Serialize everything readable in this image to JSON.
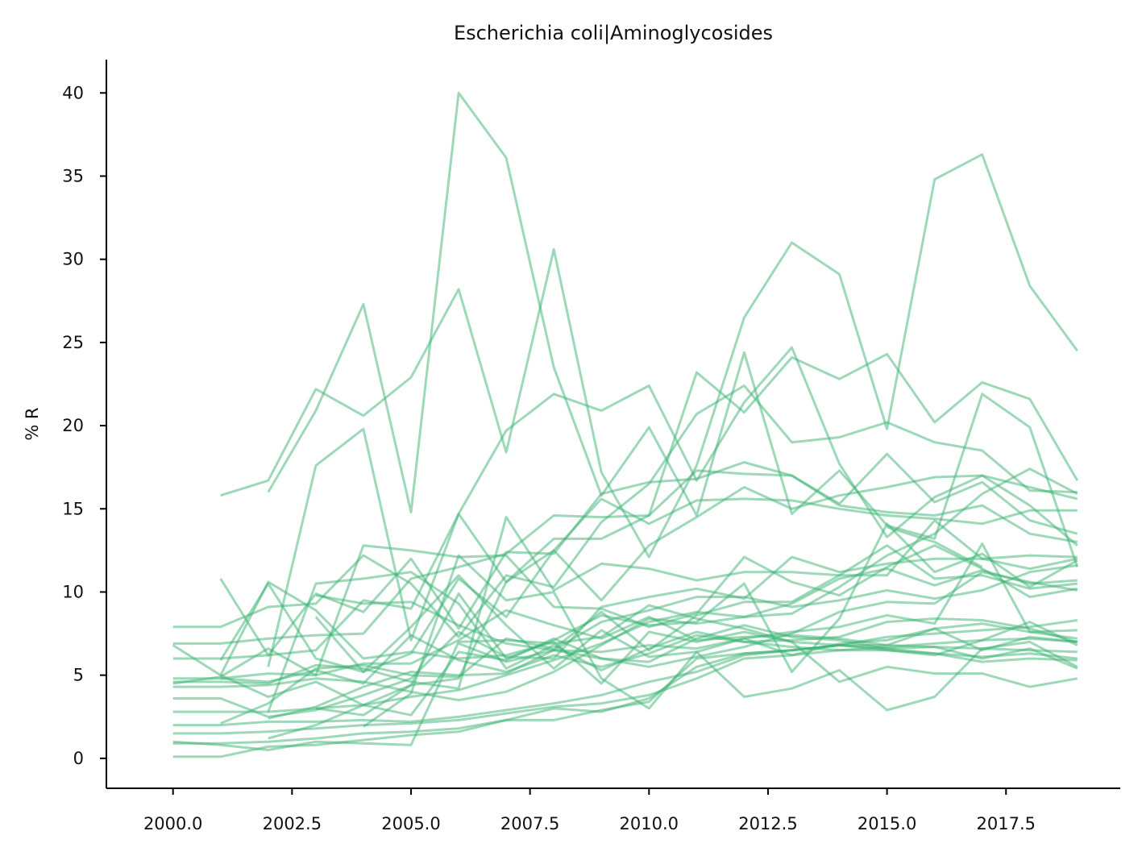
{
  "chart_data": {
    "type": "line",
    "title": "Escherichia coli|Aminoglycosides",
    "xlabel": "",
    "ylabel": "% R",
    "xlim": [
      1998.6,
      2019.9
    ],
    "ylim": [
      -1.8,
      42
    ],
    "xticks": [
      2000.0,
      2002.5,
      2005.0,
      2007.5,
      2010.0,
      2012.5,
      2015.0,
      2017.5
    ],
    "xtick_labels": [
      "2000.0",
      "2002.5",
      "2005.0",
      "2007.5",
      "2010.0",
      "2012.5",
      "2015.0",
      "2017.5"
    ],
    "yticks": [
      0,
      5,
      10,
      15,
      20,
      25,
      30,
      35,
      40
    ],
    "ytick_labels": [
      "0",
      "5",
      "10",
      "15",
      "20",
      "25",
      "30",
      "35",
      "40"
    ],
    "grid": false,
    "legend": "none",
    "line_color": "#3cb371",
    "line_alpha": 0.5,
    "x": [
      2000,
      2001,
      2002,
      2003,
      2004,
      2005,
      2006,
      2007,
      2008,
      2009,
      2010,
      2011,
      2012,
      2013,
      2014,
      2015,
      2016,
      2017,
      2018,
      2019
    ],
    "series": [
      {
        "values": [
          null,
          15.8,
          16.7,
          22.2,
          20.6,
          22.9,
          28.2,
          18.4,
          30.6,
          17.2,
          12.1,
          17.6,
          26.5,
          31.0,
          29.1,
          19.8,
          34.8,
          36.3,
          28.4,
          24.5
        ]
      },
      {
        "values": [
          null,
          null,
          16.0,
          20.9,
          27.3,
          14.8,
          40.0,
          36.1,
          23.5,
          15.8,
          19.9,
          14.6,
          24.4,
          14.7,
          17.3,
          14.0,
          13.2,
          21.9,
          19.9,
          11.5
        ]
      },
      {
        "values": [
          null,
          null,
          5.5,
          17.6,
          19.8,
          7.1,
          14.7,
          19.7,
          21.9,
          20.9,
          22.4,
          16.7,
          21.4,
          24.7,
          17.7,
          13.3,
          15.7,
          17.0,
          15.2,
          12.8
        ]
      },
      {
        "values": [
          null,
          10.8,
          6.2,
          9.9,
          8.8,
          12.0,
          7.8,
          12.4,
          12.3,
          15.9,
          16.6,
          16.8,
          17.8,
          17.0,
          15.2,
          14.8,
          14.6,
          15.2,
          13.5,
          13.0
        ]
      },
      {
        "values": [
          7.9,
          7.9,
          9.1,
          9.3,
          12.2,
          10.5,
          7.3,
          11.0,
          10.3,
          14.2,
          16.5,
          20.7,
          22.4,
          19.0,
          19.3,
          20.2,
          19.0,
          18.5,
          16.1,
          16.0
        ]
      },
      {
        "values": [
          6.9,
          6.9,
          7.2,
          7.4,
          7.5,
          10.8,
          11.5,
          12.3,
          14.6,
          14.5,
          14.6,
          23.2,
          20.8,
          24.1,
          22.8,
          24.3,
          20.2,
          22.6,
          21.6,
          16.7
        ]
      },
      {
        "values": [
          6.0,
          6.0,
          6.2,
          6.5,
          9.5,
          9.0,
          14.7,
          10.6,
          12.5,
          15.6,
          14.1,
          15.5,
          15.6,
          15.5,
          15.0,
          14.6,
          14.4,
          14.1,
          14.9,
          14.9
        ]
      },
      {
        "values": [
          4.8,
          4.8,
          5.1,
          5.0,
          12.8,
          12.5,
          12.1,
          12.2,
          9.1,
          9.0,
          7.9,
          8.7,
          12.1,
          10.6,
          9.8,
          11.5,
          12.8,
          11.4,
          9.7,
          10.2
        ]
      },
      {
        "values": [
          4.6,
          4.6,
          4.5,
          5.6,
          5.4,
          4.6,
          4.2,
          14.5,
          10.1,
          11.7,
          11.4,
          10.7,
          11.2,
          11.2,
          11.0,
          12.8,
          10.8,
          11.0,
          10.2,
          10.5
        ]
      },
      {
        "values": [
          4.3,
          4.3,
          4.4,
          4.8,
          4.6,
          4.0,
          3.5,
          4.0,
          5.2,
          6.8,
          8.4,
          8.1,
          8.5,
          8.7,
          10.3,
          12.2,
          13.5,
          15.9,
          17.4,
          15.9
        ]
      },
      {
        "values": [
          3.6,
          3.6,
          2.5,
          2.9,
          3.8,
          4.8,
          7.6,
          6.1,
          6.0,
          9.1,
          9.7,
          10.2,
          9.6,
          12.1,
          11.2,
          11.7,
          12.0,
          12.0,
          12.2,
          12.1
        ]
      },
      {
        "values": [
          2.8,
          2.8,
          2.8,
          3.0,
          3.2,
          3.7,
          4.1,
          5.0,
          5.9,
          6.9,
          8.2,
          8.8,
          8.5,
          9.3,
          10.8,
          11.4,
          10.4,
          11.3,
          10.5,
          10.7
        ]
      },
      {
        "values": [
          2.0,
          2.0,
          2.2,
          2.2,
          2.3,
          2.2,
          2.5,
          2.9,
          3.3,
          3.8,
          4.6,
          5.2,
          6.2,
          6.5,
          6.8,
          7.3,
          7.5,
          7.7,
          7.9,
          8.3
        ]
      },
      {
        "values": [
          1.5,
          1.5,
          1.6,
          1.8,
          2.0,
          2.1,
          2.3,
          2.7,
          3.1,
          3.3,
          3.8,
          4.8,
          6.0,
          6.2,
          6.5,
          6.7,
          6.9,
          7.1,
          7.2,
          7.0
        ]
      },
      {
        "values": [
          0.9,
          0.9,
          1.0,
          1.2,
          1.5,
          1.6,
          1.8,
          2.3,
          2.3,
          2.9,
          3.4,
          6.0,
          6.3,
          6.5,
          6.8,
          6.8,
          6.7,
          6.6,
          6.5,
          6.4
        ]
      },
      {
        "values": [
          0.1,
          0.1,
          0.7,
          0.8,
          1.1,
          1.4,
          1.6,
          2.3,
          3.0,
          2.8,
          3.6,
          5.5,
          6.3,
          6.5,
          6.8,
          6.5,
          6.3,
          6.1,
          6.3,
          6.0
        ]
      },
      {
        "values": [
          1.0,
          0.8,
          0.5,
          1.0,
          0.9,
          0.8,
          7.0,
          7.1,
          6.9,
          7.3,
          9.2,
          8.4,
          7.8,
          7.0,
          6.8,
          6.6,
          6.3,
          5.8,
          6.0,
          5.9
        ]
      },
      {
        "values": [
          6.8,
          5.0,
          10.6,
          8.9,
          6.0,
          6.4,
          6.0,
          6.2,
          7.0,
          4.5,
          7.6,
          7.0,
          7.6,
          7.0,
          4.6,
          5.5,
          5.1,
          5.1,
          4.3,
          4.8
        ]
      },
      {
        "values": [
          4.5,
          4.9,
          6.6,
          5.0,
          5.7,
          5.7,
          7.1,
          8.9,
          8.0,
          7.2,
          8.5,
          7.1,
          7.3,
          7.4,
          7.2,
          6.8,
          7.8,
          8.1,
          7.6,
          7.2
        ]
      },
      {
        "values": [
          null,
          2.1,
          3.3,
          5.4,
          5.6,
          5.0,
          4.9,
          7.2,
          6.6,
          8.8,
          6.5,
          8.6,
          9.4,
          9.4,
          11.0,
          11.0,
          14.3,
          12.0,
          11.4,
          12.0
        ]
      },
      {
        "values": [
          null,
          4.8,
          4.6,
          5.3,
          4.5,
          7.4,
          5.9,
          5.2,
          6.2,
          5.5,
          6.3,
          7.4,
          7.0,
          6.7,
          6.5,
          6.5,
          6.2,
          7.1,
          8.2,
          6.8
        ]
      },
      {
        "values": [
          null,
          5.0,
          3.7,
          4.6,
          3.2,
          2.6,
          6.4,
          5.9,
          7.2,
          6.0,
          5.8,
          7.2,
          8.0,
          7.3,
          7.1,
          6.6,
          6.7,
          6.0,
          6.6,
          5.4
        ]
      },
      {
        "values": [
          null,
          5.9,
          10.5,
          6.0,
          5.2,
          6.3,
          10.8,
          8.5,
          12.5,
          9.5,
          12.8,
          14.5,
          16.3,
          15.0,
          15.8,
          16.3,
          16.9,
          17.0,
          16.3,
          15.6
        ]
      },
      {
        "values": [
          null,
          null,
          1.2,
          2.0,
          3.2,
          4.4,
          4.8,
          10.6,
          13.2,
          13.2,
          14.6,
          17.3,
          17.1,
          17.0,
          15.3,
          18.3,
          15.4,
          16.6,
          14.3,
          13.5
        ]
      },
      {
        "values": [
          null,
          null,
          2.4,
          3.1,
          4.3,
          5.2,
          5.0,
          5.1,
          6.5,
          8.2,
          8.9,
          9.7,
          9.7,
          9.1,
          9.5,
          10.1,
          9.6,
          10.1,
          11.2,
          11.6
        ]
      },
      {
        "values": [
          null,
          null,
          2.8,
          10.5,
          10.8,
          11.2,
          9.3,
          5.4,
          6.8,
          5.3,
          6.6,
          7.6,
          7.0,
          7.1,
          7.3,
          8.2,
          8.4,
          8.3,
          7.8,
          7.0
        ]
      },
      {
        "values": [
          null,
          null,
          null,
          9.8,
          9.3,
          9.4,
          8.0,
          6.9,
          6.5,
          6.4,
          6.8,
          6.6,
          7.2,
          7.6,
          7.9,
          8.6,
          8.1,
          12.9,
          7.6,
          7.7
        ]
      },
      {
        "values": [
          null,
          null,
          null,
          3.0,
          2.6,
          4.4,
          9.9,
          6.0,
          7.1,
          8.6,
          8.0,
          8.2,
          10.5,
          5.2,
          8.4,
          14.1,
          11.2,
          12.3,
          10.3,
          11.9
        ]
      },
      {
        "values": [
          null,
          null,
          null,
          8.5,
          5.2,
          7.9,
          11.0,
          8.0,
          5.4,
          7.7,
          6.1,
          6.4,
          7.2,
          6.2,
          6.9,
          7.1,
          7.8,
          6.5,
          7.3,
          7.0
        ]
      },
      {
        "values": [
          null,
          null,
          null,
          null,
          1.9,
          3.9,
          12.2,
          9.5,
          10.0,
          4.8,
          3.0,
          6.4,
          3.7,
          4.2,
          5.3,
          2.9,
          3.7,
          6.6,
          7.0,
          5.5
        ]
      },
      {
        "values": [
          null,
          null,
          null,
          null,
          null,
          null,
          6.9,
          5.8,
          6.5,
          6.0,
          5.5,
          6.1,
          6.7,
          7.5,
          8.8,
          9.4,
          9.3,
          11.2,
          10.6,
          10.1
        ]
      },
      {
        "values": [
          null,
          null,
          null,
          null,
          null,
          null,
          null,
          null,
          null,
          null,
          null,
          null,
          null,
          null,
          null,
          13.9,
          13.0,
          11.5,
          null,
          null
        ]
      }
    ]
  }
}
